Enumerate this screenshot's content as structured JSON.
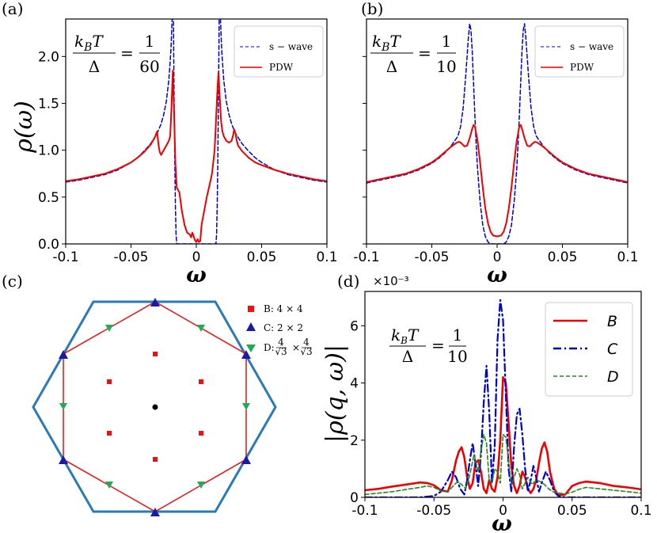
{
  "chart_data": [
    {
      "panel": "(a)",
      "type": "line",
      "xlabel": "ω",
      "ylabel": "ρ(ω)",
      "xlim": [
        -0.1,
        0.1
      ],
      "ylim": [
        0,
        2.4
      ],
      "xticks": [
        "-0.1",
        "-0.05",
        "0",
        "0.05",
        "0.1"
      ],
      "yticks": [
        "0.0",
        "0.5",
        "1.0",
        "1.5",
        "2.0"
      ],
      "annotation": {
        "lhs_num": "k",
        "lhs_sub": "B",
        "lhs_T": "T",
        "lhs_den": "Δ",
        "eq": "=",
        "rhs_num": "1",
        "rhs_den": "60"
      },
      "legend": [
        "s − wave",
        "PDW"
      ],
      "series": [
        {
          "name": "s − wave",
          "color": "#0000cc",
          "style": "dashed",
          "x": [
            -0.1,
            -0.09,
            -0.08,
            -0.07,
            -0.06,
            -0.05,
            -0.045,
            -0.04,
            -0.035,
            -0.03,
            -0.027,
            -0.025,
            -0.023,
            -0.021,
            -0.0195,
            -0.0185,
            -0.018,
            -0.0175,
            -0.017,
            -0.0165,
            -0.016,
            -0.0155,
            -0.015,
            -0.012,
            0,
            0.012,
            0.015,
            0.0155,
            0.016,
            0.0165,
            0.017,
            0.0175,
            0.018,
            0.0185,
            0.0195,
            0.021,
            0.023,
            0.025,
            0.027,
            0.03,
            0.035,
            0.04,
            0.045,
            0.05,
            0.06,
            0.07,
            0.08,
            0.09,
            0.1
          ],
          "y": [
            0.66,
            0.68,
            0.71,
            0.74,
            0.79,
            0.87,
            0.92,
            0.99,
            1.07,
            1.18,
            1.28,
            1.38,
            1.52,
            1.75,
            2.05,
            2.4,
            2.4,
            2.4,
            1.6,
            0.9,
            0.4,
            0.1,
            0.0,
            0.0,
            0.0,
            0.0,
            0.0,
            0.1,
            0.4,
            0.9,
            1.6,
            2.4,
            2.4,
            2.4,
            2.05,
            1.75,
            1.52,
            1.38,
            1.28,
            1.18,
            1.07,
            0.99,
            0.92,
            0.87,
            0.79,
            0.74,
            0.71,
            0.68,
            0.66
          ]
        },
        {
          "name": "PDW",
          "color": "#ee0000",
          "style": "solid",
          "x": [
            -0.1,
            -0.09,
            -0.08,
            -0.07,
            -0.06,
            -0.05,
            -0.045,
            -0.04,
            -0.035,
            -0.032,
            -0.03,
            -0.029,
            -0.028,
            -0.027,
            -0.025,
            -0.023,
            -0.021,
            -0.02,
            -0.019,
            -0.018,
            -0.017,
            -0.016,
            -0.015,
            -0.013,
            -0.011,
            -0.009,
            -0.007,
            -0.005,
            -0.004,
            -0.003,
            -0.002,
            -0.001,
            0,
            0.001,
            0.002,
            0.003,
            0.004,
            0.005,
            0.006,
            0.008,
            0.01,
            0.012,
            0.014,
            0.015,
            0.016,
            0.017,
            0.018,
            0.019,
            0.02,
            0.021,
            0.023,
            0.025,
            0.027,
            0.028,
            0.029,
            0.03,
            0.031,
            0.032,
            0.035,
            0.04,
            0.045,
            0.05,
            0.06,
            0.07,
            0.08,
            0.09,
            0.1
          ],
          "y": [
            0.67,
            0.69,
            0.72,
            0.75,
            0.8,
            0.87,
            0.92,
            0.98,
            1.06,
            1.13,
            1.2,
            1.06,
            0.98,
            0.95,
            1.0,
            1.05,
            1.1,
            1.15,
            1.45,
            1.85,
            1.4,
            0.85,
            0.6,
            0.55,
            0.35,
            0.2,
            0.12,
            0.1,
            0.07,
            0.12,
            0.08,
            0.04,
            0.02,
            0.05,
            0.02,
            0.03,
            0.2,
            0.28,
            0.35,
            0.5,
            0.62,
            0.75,
            1.0,
            1.3,
            1.6,
            1.83,
            1.55,
            1.3,
            1.2,
            1.15,
            1.1,
            1.08,
            1.1,
            1.15,
            1.22,
            1.18,
            1.1,
            1.05,
            0.99,
            0.92,
            0.87,
            0.84,
            0.79,
            0.75,
            0.72,
            0.69,
            0.67
          ]
        }
      ]
    },
    {
      "panel": "(b)",
      "type": "line",
      "xlabel": "ω",
      "xlim": [
        -0.1,
        0.1
      ],
      "ylim": [
        0,
        2.4
      ],
      "xticks": [
        "-0.1",
        "-0.05",
        "0",
        "0.05",
        "0.1"
      ],
      "annotation": {
        "lhs_num": "k",
        "lhs_sub": "B",
        "lhs_T": "T",
        "lhs_den": "Δ",
        "eq": "=",
        "rhs_num": "1",
        "rhs_den": "10"
      },
      "legend": [
        "s − wave",
        "PDW"
      ],
      "series": [
        {
          "name": "s − wave",
          "color": "#0000cc",
          "style": "dashed",
          "x": [
            -0.1,
            -0.09,
            -0.08,
            -0.07,
            -0.06,
            -0.05,
            -0.045,
            -0.04,
            -0.035,
            -0.03,
            -0.028,
            -0.026,
            -0.024,
            -0.022,
            -0.021,
            -0.02,
            -0.019,
            -0.018,
            -0.017,
            -0.016,
            -0.015,
            -0.013,
            -0.011,
            -0.009,
            -0.007,
            -0.005,
            0,
            0.005,
            0.007,
            0.009,
            0.011,
            0.013,
            0.015,
            0.016,
            0.017,
            0.018,
            0.019,
            0.02,
            0.021,
            0.022,
            0.024,
            0.026,
            0.028,
            0.03,
            0.035,
            0.04,
            0.045,
            0.05,
            0.06,
            0.07,
            0.08,
            0.09,
            0.1
          ],
          "y": [
            0.65,
            0.68,
            0.71,
            0.74,
            0.79,
            0.86,
            0.91,
            0.97,
            1.05,
            1.15,
            1.25,
            1.45,
            1.8,
            2.2,
            2.35,
            2.28,
            2.05,
            1.7,
            1.35,
            1.05,
            0.8,
            0.45,
            0.2,
            0.08,
            0.02,
            0.0,
            0.0,
            0.0,
            0.02,
            0.08,
            0.2,
            0.45,
            0.8,
            1.05,
            1.35,
            1.7,
            2.05,
            2.28,
            2.35,
            2.2,
            1.8,
            1.45,
            1.25,
            1.15,
            1.05,
            0.97,
            0.91,
            0.86,
            0.79,
            0.74,
            0.71,
            0.68,
            0.65
          ]
        },
        {
          "name": "PDW",
          "color": "#ee0000",
          "style": "solid",
          "x": [
            -0.1,
            -0.09,
            -0.08,
            -0.07,
            -0.06,
            -0.05,
            -0.045,
            -0.04,
            -0.035,
            -0.031,
            -0.029,
            -0.027,
            -0.025,
            -0.023,
            -0.021,
            -0.019,
            -0.018,
            -0.017,
            -0.015,
            -0.013,
            -0.011,
            -0.009,
            -0.007,
            -0.005,
            -0.003,
            0,
            0.003,
            0.005,
            0.007,
            0.009,
            0.011,
            0.013,
            0.015,
            0.017,
            0.018,
            0.019,
            0.021,
            0.023,
            0.025,
            0.027,
            0.029,
            0.031,
            0.035,
            0.04,
            0.045,
            0.05,
            0.06,
            0.07,
            0.08,
            0.09,
            0.1
          ],
          "y": [
            0.66,
            0.69,
            0.72,
            0.75,
            0.8,
            0.87,
            0.92,
            0.98,
            1.04,
            1.08,
            1.09,
            1.07,
            1.04,
            1.05,
            1.13,
            1.23,
            1.27,
            1.25,
            1.1,
            0.87,
            0.6,
            0.38,
            0.22,
            0.13,
            0.09,
            0.08,
            0.09,
            0.13,
            0.22,
            0.38,
            0.6,
            0.87,
            1.1,
            1.25,
            1.27,
            1.23,
            1.13,
            1.05,
            1.04,
            1.07,
            1.09,
            1.08,
            1.04,
            0.98,
            0.92,
            0.87,
            0.8,
            0.75,
            0.72,
            0.69,
            0.66
          ]
        }
      ]
    },
    {
      "panel": "(c)",
      "type": "diagram",
      "legend": [
        {
          "marker": "square",
          "color": "#ee1111",
          "text": "B: 4 × 4"
        },
        {
          "marker": "triangle-up",
          "color": "#1a1aa8",
          "text": "C: 2 × 2"
        },
        {
          "marker": "triangle-down",
          "color": "#22aa55",
          "text_pre": "D: ",
          "frac": "4",
          "sqrt": "√3",
          "times": "×"
        }
      ]
    },
    {
      "panel": "(d)",
      "type": "line",
      "xlabel": "ω",
      "ylabel": "|ρ(q, ω)|",
      "exponent": "×10⁻³",
      "xlim": [
        -0.1,
        0.1
      ],
      "ylim": [
        0,
        7.2
      ],
      "xticks": [
        "-0.1",
        "-0.05",
        "0",
        "0.05",
        "0.1"
      ],
      "yticks": [
        "0",
        "2",
        "4",
        "6"
      ],
      "annotation": {
        "lhs_num": "k",
        "lhs_sub": "B",
        "lhs_T": "T",
        "lhs_den": "Δ",
        "eq": "=",
        "rhs_num": "1",
        "rhs_den": "10"
      },
      "legend": [
        "B",
        "C",
        "D"
      ],
      "series": [
        {
          "name": "B",
          "color": "#ee0000",
          "style": "solid",
          "x": [
            -0.1,
            -0.09,
            -0.08,
            -0.07,
            -0.06,
            -0.055,
            -0.05,
            -0.045,
            -0.04,
            -0.037,
            -0.034,
            -0.032,
            -0.03,
            -0.028,
            -0.026,
            -0.024,
            -0.022,
            -0.02,
            -0.018,
            -0.016,
            -0.014,
            -0.012,
            -0.01,
            -0.008,
            -0.006,
            -0.004,
            -0.002,
            0,
            0.002,
            0.004,
            0.006,
            0.008,
            0.01,
            0.012,
            0.014,
            0.016,
            0.018,
            0.02,
            0.022,
            0.024,
            0.026,
            0.028,
            0.03,
            0.032,
            0.034,
            0.037,
            0.04,
            0.045,
            0.05,
            0.055,
            0.06,
            0.07,
            0.08,
            0.09,
            0.1
          ],
          "y": [
            0.25,
            0.3,
            0.38,
            0.45,
            0.52,
            0.5,
            0.42,
            0.25,
            0.2,
            0.6,
            1.3,
            1.6,
            1.75,
            1.4,
            0.7,
            0.3,
            0.5,
            1.2,
            1.3,
            0.9,
            0.3,
            0.15,
            0.6,
            0.3,
            0.2,
            0.7,
            2.0,
            4.2,
            4.0,
            2.6,
            1.1,
            0.4,
            0.15,
            0.4,
            0.9,
            0.7,
            0.3,
            0.15,
            0.3,
            0.6,
            1.2,
            1.7,
            1.92,
            1.6,
            0.9,
            0.3,
            0.08,
            0.1,
            0.4,
            0.5,
            0.55,
            0.5,
            0.4,
            0.35,
            0.28
          ]
        },
        {
          "name": "C",
          "color": "#0000cc",
          "style": "dashdot",
          "x": [
            -0.1,
            -0.08,
            -0.06,
            -0.05,
            -0.045,
            -0.04,
            -0.037,
            -0.034,
            -0.031,
            -0.028,
            -0.026,
            -0.024,
            -0.022,
            -0.02,
            -0.018,
            -0.016,
            -0.014,
            -0.012,
            -0.01,
            -0.008,
            -0.006,
            -0.004,
            -0.002,
            0,
            0.002,
            0.004,
            0.006,
            0.008,
            0.01,
            0.012,
            0.014,
            0.016,
            0.018,
            0.02,
            0.022,
            0.024,
            0.026,
            0.028,
            0.031,
            0.034,
            0.037,
            0.04,
            0.045,
            0.05,
            0.06,
            0.08,
            0.1
          ],
          "y": [
            0.0,
            0.0,
            0.0,
            0.05,
            0.2,
            0.6,
            0.9,
            0.7,
            0.3,
            0.1,
            0.6,
            1.3,
            1.9,
            1.2,
            0.4,
            1.5,
            3.3,
            4.6,
            3.0,
            0.5,
            1.8,
            5.5,
            6.9,
            6.2,
            3.6,
            1.0,
            0.2,
            1.8,
            2.9,
            3.1,
            2.2,
            1.0,
            0.2,
            0.6,
            1.1,
            0.7,
            0.2,
            0.5,
            0.9,
            0.6,
            0.2,
            0.05,
            0.0,
            0.0,
            0.0,
            0.0,
            0.0
          ]
        },
        {
          "name": "D",
          "color": "#228822",
          "style": "dashed",
          "x": [
            -0.1,
            -0.09,
            -0.08,
            -0.07,
            -0.06,
            -0.055,
            -0.05,
            -0.045,
            -0.04,
            -0.036,
            -0.033,
            -0.03,
            -0.027,
            -0.024,
            -0.021,
            -0.018,
            -0.016,
            -0.014,
            -0.012,
            -0.01,
            -0.008,
            -0.006,
            -0.004,
            -0.002,
            0,
            0.002,
            0.004,
            0.006,
            0.008,
            0.01,
            0.012,
            0.014,
            0.016,
            0.018,
            0.021,
            0.024,
            0.027,
            0.03,
            0.033,
            0.036,
            0.04,
            0.045,
            0.05,
            0.055,
            0.06,
            0.07,
            0.08,
            0.09,
            0.1
          ],
          "y": [
            0.1,
            0.15,
            0.2,
            0.28,
            0.35,
            0.4,
            0.35,
            0.22,
            0.2,
            0.4,
            0.55,
            0.45,
            0.3,
            0.8,
            1.5,
            0.9,
            1.6,
            2.2,
            1.9,
            0.6,
            0.5,
            1.0,
            0.9,
            0.5,
            2.2,
            2.1,
            1.3,
            0.4,
            0.7,
            1.0,
            0.8,
            0.3,
            0.5,
            0.7,
            0.45,
            0.6,
            0.55,
            0.45,
            0.3,
            0.2,
            0.15,
            0.12,
            0.18,
            0.28,
            0.35,
            0.3,
            0.25,
            0.2,
            0.15
          ]
        }
      ]
    }
  ]
}
